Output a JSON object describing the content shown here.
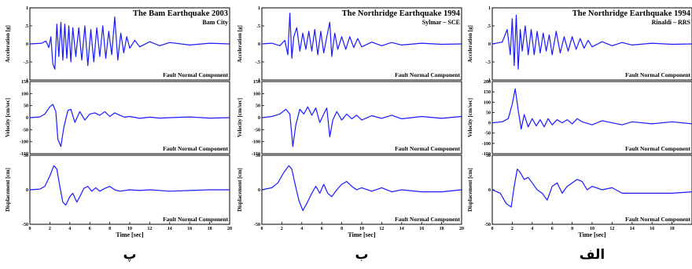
{
  "chart_data": {
    "type": "line",
    "columns": [
      {
        "id": "bam",
        "caption": "پ",
        "title": "The Bam Earthquake 2003",
        "station": "Bam City",
        "component_note": "Fault Normal Component",
        "xlabel": "Time [sec]",
        "xlim": [
          0,
          20
        ],
        "xticks": [
          0,
          2,
          4,
          6,
          8,
          10,
          12,
          14,
          16,
          18,
          20
        ],
        "panels": [
          {
            "ylabel": "Acceleration [g]",
            "ylim": [
              -1,
              1
            ],
            "yticks": [
              -1,
              -0.5,
              0,
              0.5,
              1
            ],
            "series": {
              "x": [
                0,
                1.2,
                1.6,
                1.9,
                2.1,
                2.3,
                2.5,
                2.7,
                2.9,
                3.1,
                3.3,
                3.5,
                3.7,
                3.9,
                4.1,
                4.3,
                4.6,
                4.9,
                5.2,
                5.5,
                5.8,
                6.1,
                6.4,
                6.7,
                7.0,
                7.3,
                7.6,
                7.9,
                8.2,
                8.5,
                8.8,
                9.1,
                9.4,
                9.7,
                10.0,
                10.5,
                11,
                12,
                13,
                14,
                16,
                18,
                20
              ],
              "y": [
                0,
                0.02,
                0.08,
                -0.1,
                0.2,
                -0.55,
                -0.7,
                0.55,
                -0.35,
                0.6,
                -0.45,
                0.55,
                -0.4,
                0.5,
                -0.5,
                0.45,
                -0.35,
                0.45,
                -0.45,
                0.5,
                -0.6,
                0.4,
                -0.5,
                0.45,
                -0.35,
                0.5,
                -0.4,
                0.35,
                -0.3,
                0.75,
                -0.45,
                0.3,
                -0.25,
                0.2,
                -0.12,
                0.1,
                -0.08,
                0.06,
                -0.05,
                0.04,
                -0.03,
                0.02,
                0
              ]
            }
          },
          {
            "ylabel": "Velocity [cm/sec]",
            "ylim": [
              -150,
              150
            ],
            "yticks": [
              -150,
              -100,
              -50,
              0,
              50,
              100,
              150
            ],
            "series": {
              "x": [
                0,
                1.0,
                1.5,
                2.0,
                2.3,
                2.6,
                2.8,
                3.1,
                3.4,
                3.8,
                4.1,
                4.5,
                5.0,
                5.5,
                6.0,
                6.5,
                7.0,
                7.5,
                8.0,
                8.5,
                9.0,
                9.5,
                10,
                11,
                12,
                13,
                14,
                16,
                18,
                20
              ],
              "y": [
                0,
                3,
                15,
                45,
                55,
                25,
                -90,
                -120,
                -40,
                30,
                35,
                -20,
                25,
                -10,
                15,
                20,
                10,
                25,
                5,
                20,
                10,
                2,
                5,
                -3,
                2,
                -2,
                0,
                3,
                -2,
                0
              ]
            }
          },
          {
            "ylabel": "Displacement [cm]",
            "ylim": [
              -50,
              50
            ],
            "yticks": [
              -50,
              0,
              50
            ],
            "series": {
              "x": [
                0,
                1.0,
                1.5,
                2.0,
                2.4,
                2.7,
                3.0,
                3.3,
                3.6,
                4.0,
                4.3,
                4.7,
                5.0,
                5.4,
                5.8,
                6.2,
                6.6,
                7.0,
                7.5,
                8.0,
                8.5,
                9.0,
                10,
                11,
                12,
                14,
                16,
                18,
                20
              ],
              "y": [
                0,
                1,
                5,
                20,
                35,
                30,
                5,
                -18,
                -22,
                -10,
                -5,
                -18,
                -10,
                2,
                5,
                -2,
                3,
                -2,
                2,
                5,
                0,
                -2,
                0,
                -1,
                0,
                -2,
                -1,
                0,
                0
              ]
            }
          }
        ]
      },
      {
        "id": "northridge_sylmar",
        "caption": "ب",
        "title": "The Northridge Earthquake 1994",
        "station": "Sylmar – SCE",
        "component_note": "Fault Normal Component",
        "xlabel": "Time [sec]",
        "xlim": [
          0,
          20
        ],
        "xticks": [
          0,
          2,
          4,
          6,
          8,
          10,
          12,
          14,
          16,
          18,
          20
        ],
        "panels": [
          {
            "ylabel": "Acceleration [g]",
            "ylim": [
              -1,
              1
            ],
            "yticks": [
              -1,
              -0.5,
              0,
              0.5,
              1
            ],
            "series": {
              "x": [
                0,
                1.0,
                1.8,
                2.3,
                2.6,
                2.8,
                3.0,
                3.2,
                3.5,
                3.8,
                4.1,
                4.4,
                4.7,
                5.0,
                5.3,
                5.6,
                5.9,
                6.2,
                6.5,
                6.8,
                7.0,
                7.3,
                7.6,
                8.0,
                8.4,
                8.8,
                9.2,
                9.6,
                10,
                11,
                12,
                13,
                14,
                16,
                18,
                20
              ],
              "y": [
                0,
                0.02,
                -0.05,
                0.1,
                -0.3,
                0.85,
                -0.4,
                0.2,
                0.45,
                -0.2,
                0.3,
                -0.15,
                0.35,
                -0.2,
                0.4,
                -0.3,
                0.35,
                -0.25,
                0.2,
                0.6,
                -0.35,
                0.3,
                -0.15,
                0.2,
                -0.15,
                0.2,
                -0.1,
                0.15,
                -0.08,
                0.05,
                -0.05,
                0.04,
                -0.03,
                0.02,
                -0.01,
                0
              ]
            }
          },
          {
            "ylabel": "Velocity [cm/sec]",
            "ylim": [
              -150,
              150
            ],
            "yticks": [
              -150,
              -100,
              -50,
              0,
              50,
              100,
              150
            ],
            "series": {
              "x": [
                0,
                1.0,
                1.8,
                2.4,
                2.8,
                3.1,
                3.4,
                3.8,
                4.2,
                4.6,
                5.0,
                5.4,
                5.8,
                6.2,
                6.5,
                6.8,
                7.1,
                7.5,
                8.0,
                8.5,
                9.0,
                9.5,
                10,
                11,
                12,
                13,
                14,
                16,
                18,
                20
              ],
              "y": [
                0,
                5,
                15,
                35,
                15,
                -120,
                -30,
                35,
                15,
                45,
                10,
                40,
                -20,
                15,
                40,
                -80,
                -10,
                25,
                -10,
                15,
                -5,
                10,
                -10,
                8,
                -3,
                10,
                -5,
                5,
                -3,
                5
              ]
            }
          },
          {
            "ylabel": "Displacement [cm]",
            "ylim": [
              -50,
              50
            ],
            "yticks": [
              -50,
              0,
              50
            ],
            "series": {
              "x": [
                0,
                1.0,
                1.6,
                2.2,
                2.7,
                3.0,
                3.3,
                3.7,
                4.1,
                4.5,
                5.0,
                5.4,
                5.8,
                6.2,
                6.6,
                7.0,
                7.5,
                8.0,
                8.5,
                9.0,
                9.5,
                10,
                11,
                12,
                13,
                14,
                16,
                18,
                20
              ],
              "y": [
                0,
                3,
                10,
                25,
                35,
                30,
                10,
                -15,
                -30,
                -20,
                -5,
                5,
                -5,
                8,
                -5,
                -10,
                0,
                8,
                12,
                5,
                0,
                3,
                -2,
                3,
                -3,
                0,
                -3,
                -3,
                0
              ]
            }
          }
        ]
      },
      {
        "id": "northridge_rinaldi",
        "caption": "الف",
        "title": "The Northridge Earthquake 1994",
        "station": "Rinaldi – RRS",
        "component_note": "Fault Normal Component",
        "xlabel": "Time [sec]",
        "xlim": [
          0,
          20
        ],
        "xticks": [
          0,
          2,
          4,
          6,
          8,
          10,
          12,
          14,
          16,
          18
        ],
        "panels": [
          {
            "ylabel": "Acceleration [g]",
            "ylim": [
              -1,
              1
            ],
            "yticks": [
              -1,
              -0.5,
              0,
              0.5,
              1
            ],
            "series": {
              "x": [
                0,
                1.0,
                1.5,
                1.8,
                2.0,
                2.2,
                2.4,
                2.6,
                2.8,
                3.0,
                3.3,
                3.6,
                3.9,
                4.2,
                4.5,
                4.8,
                5.1,
                5.4,
                5.7,
                6.0,
                6.4,
                6.8,
                7.2,
                7.6,
                8.0,
                8.4,
                8.8,
                9.2,
                9.6,
                10,
                11,
                12,
                13,
                14,
                16,
                18,
                20
              ],
              "y": [
                0,
                0.05,
                0.4,
                -0.3,
                0.7,
                -0.6,
                0.8,
                -0.7,
                0.4,
                -0.2,
                0.5,
                -0.3,
                0.4,
                -0.3,
                0.35,
                -0.25,
                0.3,
                -0.2,
                0.25,
                -0.3,
                0.35,
                -0.25,
                0.2,
                -0.2,
                0.2,
                -0.15,
                0.15,
                -0.12,
                0.1,
                -0.08,
                0.06,
                -0.05,
                0.04,
                -0.03,
                0.02,
                -0.01,
                0
              ]
            }
          },
          {
            "ylabel": "Velocity [cm/sec]",
            "ylim": [
              -150,
              200
            ],
            "yticks": [
              -150,
              -100,
              -50,
              0,
              50,
              100,
              150,
              200
            ],
            "series": {
              "x": [
                0,
                1.0,
                1.6,
                2.0,
                2.3,
                2.6,
                2.9,
                3.2,
                3.6,
                4.0,
                4.4,
                4.8,
                5.2,
                5.6,
                6.0,
                6.5,
                7.0,
                7.5,
                8.0,
                8.5,
                9.0,
                10,
                11,
                12,
                13,
                14,
                16,
                18,
                20
              ],
              "y": [
                0,
                5,
                20,
                90,
                165,
                60,
                -30,
                40,
                -20,
                20,
                -15,
                15,
                -20,
                20,
                -10,
                15,
                0,
                15,
                -5,
                20,
                5,
                -10,
                10,
                0,
                -10,
                5,
                -5,
                5,
                -5
              ]
            }
          },
          {
            "ylabel": "Displacement [cm]",
            "ylim": [
              -50,
              50
            ],
            "yticks": [
              -50,
              0,
              50
            ],
            "series": {
              "x": [
                0,
                0.8,
                1.4,
                1.9,
                2.2,
                2.5,
                2.8,
                3.2,
                3.6,
                4.0,
                4.5,
                5.0,
                5.5,
                6.0,
                6.5,
                7.0,
                7.5,
                8.0,
                8.5,
                9.0,
                9.5,
                10,
                11,
                12,
                13,
                14,
                16,
                18,
                20
              ],
              "y": [
                0,
                -5,
                -20,
                -25,
                5,
                30,
                25,
                15,
                18,
                10,
                0,
                -5,
                -15,
                5,
                10,
                -5,
                5,
                10,
                15,
                12,
                0,
                5,
                0,
                3,
                -5,
                -5,
                -5,
                -5,
                -3
              ]
            }
          }
        ]
      }
    ]
  }
}
